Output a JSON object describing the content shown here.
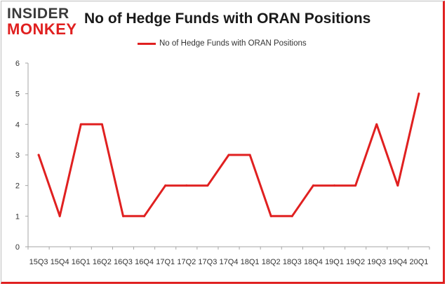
{
  "logo": {
    "line1": "INSIDER",
    "line2": "MONKEY"
  },
  "colors": {
    "series": "#e02020",
    "axis": "#a6a6a6",
    "text": "#1a1a1a",
    "logo_dark": "#3a3a3a",
    "logo_red": "#e02020"
  },
  "chart_data": {
    "type": "line",
    "title": "No of Hedge Funds with ORAN Positions",
    "xlabel": "",
    "ylabel": "",
    "ylim": [
      0,
      6
    ],
    "yticks": [
      0,
      1,
      2,
      3,
      4,
      5,
      6
    ],
    "grid": false,
    "legend_position": "top-center",
    "categories": [
      "15Q3",
      "15Q4",
      "16Q1",
      "16Q2",
      "16Q3",
      "16Q4",
      "17Q1",
      "17Q2",
      "17Q3",
      "17Q4",
      "18Q1",
      "18Q2",
      "18Q3",
      "18Q4",
      "19Q1",
      "19Q2",
      "19Q3",
      "19Q4",
      "20Q1"
    ],
    "series": [
      {
        "name": "No of Hedge Funds with ORAN Positions",
        "values": [
          3,
          1,
          4,
          4,
          1,
          1,
          2,
          2,
          2,
          3,
          3,
          1,
          1,
          2,
          2,
          2,
          4,
          2,
          5
        ]
      }
    ]
  }
}
